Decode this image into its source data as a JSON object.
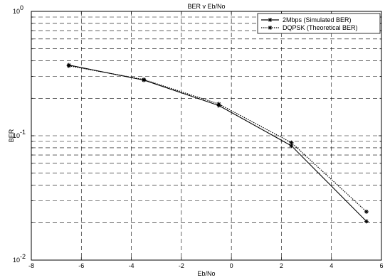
{
  "chart_data": {
    "type": "line",
    "title": "BER v Eb/No",
    "xlabel": "Eb/No",
    "ylabel": "BER",
    "xlim": [
      -8,
      6
    ],
    "ylim": [
      0.01,
      1
    ],
    "yscale": "log",
    "grid": true,
    "legend_position": "top-right",
    "x_ticks": [
      -8,
      -6,
      -4,
      -2,
      0,
      2,
      4,
      6
    ],
    "x_tick_labels": [
      "-8",
      "-6",
      "-4",
      "-2",
      "0",
      "2",
      "4",
      "6"
    ],
    "y_ticks": [
      0.01,
      0.1,
      1
    ],
    "y_tick_base": "10",
    "y_tick_exponents": [
      "-2",
      "-1",
      "0"
    ],
    "series": [
      {
        "name": "2Mbps (Simulated BER)",
        "line_style": "solid",
        "marker": "star",
        "color": "#000000",
        "x": [
          -6.5,
          -3.5,
          -0.5,
          2.4,
          5.4
        ],
        "y": [
          0.37,
          0.28,
          0.175,
          0.083,
          0.0205
        ]
      },
      {
        "name": "DQPSK (Theoretical BER)",
        "line_style": "dotted",
        "marker": "star",
        "color": "#000000",
        "x": [
          -6.5,
          -3.5,
          -0.5,
          2.4,
          5.4
        ],
        "y": [
          0.365,
          0.283,
          0.18,
          0.088,
          0.0245
        ]
      }
    ]
  }
}
